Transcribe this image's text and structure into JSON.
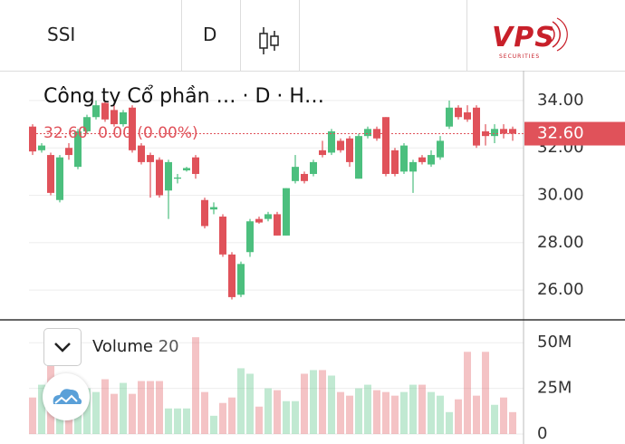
{
  "toolbar": {
    "symbol": "SSI",
    "interval": "D",
    "logo": "VPS",
    "logo_sub": "SECURITIES"
  },
  "legend": {
    "title": "Công ty Cổ phần … · D · H…",
    "price": "32.60",
    "change": "0.00",
    "change_pct": "(0.00%)"
  },
  "chart_data": {
    "type": "candlestick",
    "open": [
      32.9,
      31.9,
      31.7,
      29.8,
      32.0,
      31.2,
      32.7,
      33.3,
      33.9,
      33.6,
      33.0,
      33.7,
      32.1,
      31.7,
      31.5,
      30.2,
      30.7,
      31.05,
      31.6,
      29.8,
      29.4,
      29.1,
      27.5,
      25.8,
      27.6,
      29.0,
      29.0,
      29.2,
      28.3,
      30.6,
      30.9,
      30.9,
      31.9,
      31.8,
      32.3,
      32.4,
      30.7,
      32.5,
      32.8,
      33.3,
      31.9,
      31.0,
      31.0,
      31.6,
      31.3,
      31.6,
      32.9,
      33.7,
      33.5,
      33.7,
      32.7,
      32.5,
      32.8,
      32.8
    ],
    "high": [
      33.0,
      32.2,
      31.8,
      31.7,
      32.2,
      32.8,
      33.4,
      34.0,
      34.0,
      33.8,
      33.6,
      33.8,
      32.2,
      31.8,
      31.6,
      31.5,
      30.9,
      31.2,
      31.7,
      29.9,
      29.7,
      29.2,
      27.6,
      27.2,
      29.0,
      29.1,
      29.3,
      29.3,
      30.3,
      31.7,
      31.0,
      31.5,
      32.3,
      32.8,
      32.4,
      32.5,
      32.6,
      32.9,
      32.9,
      33.3,
      32.0,
      32.2,
      31.5,
      31.7,
      31.9,
      32.5,
      34.0,
      33.8,
      33.8,
      33.8,
      33.0,
      33.0,
      33.0,
      32.9
    ],
    "low": [
      31.7,
      31.8,
      30.0,
      29.7,
      31.5,
      31.1,
      32.6,
      33.2,
      33.1,
      32.9,
      32.9,
      31.8,
      31.3,
      29.9,
      29.9,
      29.0,
      30.5,
      31.0,
      30.7,
      28.6,
      29.2,
      27.4,
      25.6,
      25.7,
      27.4,
      28.8,
      28.9,
      28.3,
      28.3,
      30.5,
      30.5,
      30.8,
      31.6,
      31.7,
      31.8,
      31.2,
      30.7,
      32.4,
      32.3,
      30.8,
      30.8,
      30.9,
      30.1,
      31.3,
      31.2,
      31.5,
      32.8,
      33.2,
      33.1,
      32.0,
      32.1,
      32.2,
      32.4,
      32.3
    ],
    "close": [
      31.85,
      32.1,
      30.1,
      31.6,
      31.7,
      32.7,
      33.3,
      33.8,
      33.2,
      33.0,
      33.5,
      31.9,
      31.4,
      31.4,
      30.0,
      31.4,
      30.75,
      31.15,
      30.9,
      28.7,
      29.5,
      27.5,
      25.7,
      27.1,
      28.9,
      28.85,
      29.2,
      28.3,
      30.3,
      31.2,
      30.6,
      31.4,
      31.7,
      32.7,
      31.9,
      31.4,
      32.5,
      32.8,
      32.4,
      30.9,
      30.9,
      32.1,
      31.4,
      31.4,
      31.7,
      32.3,
      33.7,
      33.3,
      33.2,
      32.1,
      32.5,
      32.8,
      32.6,
      32.6
    ],
    "volume": [
      20000000,
      27000000,
      42000000,
      30000000,
      22000000,
      30000000,
      25000000,
      23000000,
      30000000,
      22000000,
      28000000,
      22000000,
      29000000,
      29000000,
      29000000,
      14000000,
      14000000,
      14000000,
      53000000,
      23000000,
      10000000,
      17000000,
      20000000,
      36000000,
      33000000,
      15000000,
      25000000,
      24000000,
      18000000,
      18000000,
      33000000,
      35000000,
      35000000,
      32000000,
      23000000,
      21000000,
      25000000,
      27000000,
      24000000,
      23000000,
      21000000,
      23000000,
      27000000,
      27000000,
      23000000,
      21000000,
      12000000,
      19000000,
      45000000,
      21000000,
      45000000,
      16000000,
      20000000,
      12000000
    ],
    "ylim": [
      24.74,
      35.26
    ],
    "yticks": [
      {
        "value": 26,
        "label": "26.00"
      },
      {
        "value": 28,
        "label": "28.00"
      },
      {
        "value": 30,
        "label": "30.00"
      },
      {
        "value": 32,
        "label": "32.00"
      },
      {
        "value": 34,
        "label": "34.00"
      }
    ],
    "y2lim": [
      0,
      62500000
    ],
    "y2ticks": [
      0,
      {
        "value": 25000000,
        "label": "25M"
      },
      {
        "value": 50000000,
        "label": "50M"
      }
    ],
    "last_price": {
      "value": 32.6,
      "label": "32.60"
    },
    "volume_name": "Volume",
    "volume_length": 20,
    "up_color": "#4cbf7e",
    "down_color": "#e0525a",
    "grid": true
  }
}
